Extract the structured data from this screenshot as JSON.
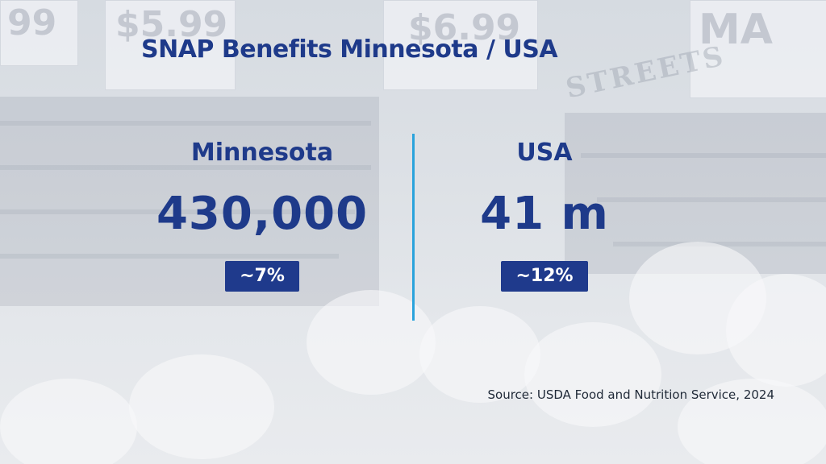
{
  "title": "SNAP Benefits Minnesota / USA",
  "minnesota": {
    "label": "Minnesota",
    "value": "430,000",
    "share": "~7%"
  },
  "usa": {
    "label": "USA",
    "value": "41 m",
    "share": "~12%"
  },
  "source": "Source: USDA Food and Nutrition Service, 2024",
  "colors": {
    "primary": "#1e3a8a",
    "badge": "#1f3a8c",
    "divider": "#2aa3dc",
    "background": "#dfe3e8"
  }
}
